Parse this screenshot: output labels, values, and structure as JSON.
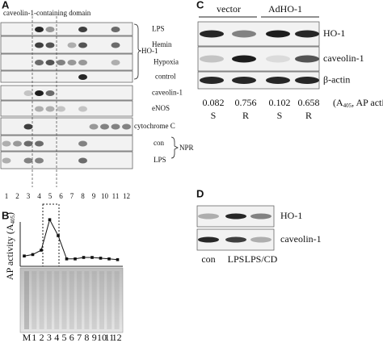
{
  "panel_a": {
    "label": "A",
    "title": "caveolin-1-containing domain",
    "rows": [
      "LPS",
      "Hemin",
      "Hypoxia",
      "control",
      "caveolin-1",
      "eNOS",
      "cytochrome C",
      "con",
      "LPS"
    ],
    "groups": [
      "HO-1",
      "NPR"
    ],
    "lanes": [
      "1",
      "2",
      "3",
      "4",
      "5",
      "6",
      "7",
      "8",
      "9",
      "10",
      "11",
      "12"
    ]
  },
  "panel_b": {
    "label": "B",
    "y_label": [
      "AP activity (A",
      "405",
      ")"
    ],
    "chart": {
      "type": "line",
      "values": [
        0.12,
        0.14,
        0.2,
        0.62,
        0.4,
        0.08,
        0.08,
        0.1,
        0.1,
        0.09,
        0.08,
        0.07
      ],
      "ylim": [
        0,
        0.7
      ]
    },
    "lanes": [
      "M",
      "1",
      "2",
      "3",
      "4",
      "5",
      "6",
      "7",
      "8",
      "9",
      "10",
      "11",
      "12"
    ]
  },
  "panel_c": {
    "label": "C",
    "groups": [
      "vector",
      "AdHO-1"
    ],
    "rows": [
      "HO-1",
      "caveolin-1",
      "β-actin"
    ],
    "values": [
      0.082,
      0.756,
      0.102,
      0.658
    ],
    "unit": [
      "(A",
      "405",
      ", AP activity)"
    ],
    "letters": [
      "S",
      "R",
      "S",
      "R"
    ]
  },
  "panel_d": {
    "label": "D",
    "rows": [
      "HO-1",
      "caveolin-1"
    ],
    "lanes": [
      "con",
      "LPS",
      "LPS/CD"
    ]
  }
}
